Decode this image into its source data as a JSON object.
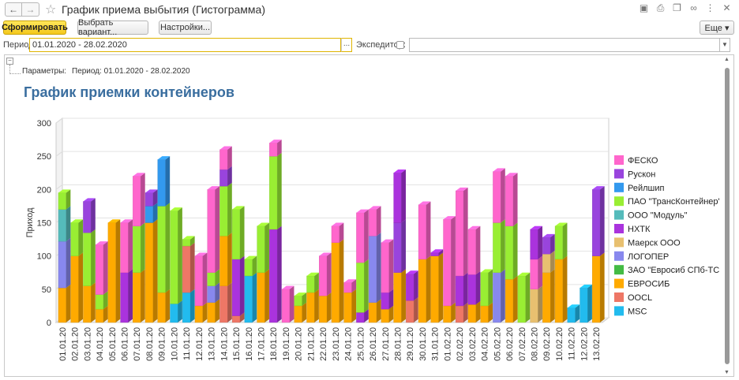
{
  "window": {
    "title": "График приема выбытия (Гистограмма)",
    "nav_back": "←",
    "nav_forward": "→",
    "icons": [
      "save-icon",
      "print-icon",
      "copy-icon",
      "link-icon",
      "menu-icon",
      "close-icon"
    ]
  },
  "toolbar": {
    "generate_label": "Сформировать",
    "variant_label": "Выбрать вариант...",
    "settings_label": "Настройки...",
    "more_label": "Еще ▾"
  },
  "filters": {
    "period_label": "Период:",
    "period_value": "01.01.2020 - 28.02.2020",
    "period_button": "...",
    "expeditor_label": "Экспедитор:",
    "expeditor_checked": false,
    "expeditor_value": ""
  },
  "report": {
    "params_label": "Параметры:",
    "params_value": "Период: 01.01.2020 - 28.02.2020",
    "title": "График приемки контейнеров"
  },
  "colors": {
    "ФЕСКО": "#ff66cc",
    "Рускон": "#9944dd",
    "Рейлшип": "#3399ee",
    "ПАО \"ТрансКонтейнер\"": "#99ee33",
    "ООО \"Модуль\"": "#55bbbb",
    "НХТК": "#aa33dd",
    "Маерск ООО": "#e8c070",
    "ЛОГОПЕР": "#8888ee",
    "ЗАО  \"Евросиб СПб-ТС\"": "#44bb44",
    "ЕВРОСИБ": "#ffaa00",
    "OOCL": "#ee7766",
    "MSC": "#22bbee"
  },
  "chart_data": {
    "type": "bar",
    "stacked": true,
    "ylabel": "Приход",
    "ylim": [
      0,
      300
    ],
    "yticks": [
      0,
      50,
      100,
      150,
      200,
      250,
      300
    ],
    "legend_position": "right",
    "categories": [
      "01.01.20",
      "02.01.20",
      "03.01.20",
      "04.01.20",
      "05.01.20",
      "06.01.20",
      "07.01.20",
      "08.01.20",
      "09.01.20",
      "10.01.20",
      "11.01.20",
      "12.01.20",
      "13.01.20",
      "14.01.20",
      "15.01.20",
      "16.01.20",
      "17.01.20",
      "18.01.20",
      "19.01.20",
      "20.01.20",
      "21.01.20",
      "22.01.20",
      "23.01.20",
      "24.01.20",
      "25.01.20",
      "26.01.20",
      "27.01.20",
      "28.01.20",
      "29.01.20",
      "30.01.20",
      "31.01.20",
      "01.02.20",
      "02.02.20",
      "03.02.20",
      "04.02.20",
      "05.02.20",
      "06.02.20",
      "07.02.20",
      "08.02.20",
      "09.02.20",
      "10.02.20",
      "11.02.20",
      "12.02.20",
      "13.02.20"
    ],
    "series": [
      {
        "name": "MSC",
        "values": [
          0,
          0,
          0,
          0,
          0,
          0,
          0,
          0,
          0,
          28,
          45,
          0,
          0,
          0,
          0,
          70,
          0,
          0,
          0,
          0,
          0,
          0,
          0,
          0,
          0,
          0,
          0,
          0,
          0,
          0,
          0,
          0,
          0,
          0,
          0,
          0,
          0,
          0,
          0,
          0,
          0,
          22,
          52,
          0
        ]
      },
      {
        "name": "OOCL",
        "values": [
          0,
          0,
          0,
          0,
          0,
          0,
          0,
          0,
          0,
          0,
          70,
          0,
          0,
          55,
          10,
          0,
          0,
          0,
          0,
          0,
          0,
          0,
          0,
          0,
          0,
          0,
          0,
          0,
          33,
          0,
          0,
          0,
          25,
          0,
          0,
          0,
          0,
          0,
          0,
          0,
          0,
          0,
          0,
          0
        ]
      },
      {
        "name": "ЕВРОСИБ",
        "values": [
          52,
          100,
          55,
          20,
          150,
          0,
          75,
          150,
          45,
          0,
          0,
          25,
          30,
          75,
          0,
          0,
          75,
          0,
          0,
          25,
          45,
          40,
          120,
          45,
          0,
          30,
          20,
          75,
          0,
          95,
          100,
          25,
          0,
          27,
          25,
          0,
          65,
          0,
          0,
          75,
          95,
          0,
          0,
          100
        ]
      },
      {
        "name": "ЗАО  \"Евросиб СПб-ТС\"",
        "values": [
          0,
          0,
          0,
          0,
          0,
          0,
          0,
          0,
          0,
          0,
          0,
          0,
          0,
          0,
          0,
          0,
          0,
          0,
          0,
          0,
          0,
          0,
          0,
          0,
          0,
          0,
          0,
          0,
          0,
          0,
          0,
          0,
          0,
          0,
          0,
          0,
          0,
          0,
          0,
          0,
          0,
          0,
          0,
          0
        ]
      },
      {
        "name": "ЛОГОПЕР",
        "values": [
          70,
          0,
          0,
          0,
          0,
          0,
          0,
          0,
          0,
          0,
          0,
          0,
          25,
          0,
          0,
          0,
          0,
          0,
          0,
          0,
          0,
          0,
          0,
          0,
          0,
          100,
          0,
          0,
          0,
          0,
          0,
          0,
          0,
          0,
          0,
          75,
          0,
          0,
          0,
          0,
          0,
          0,
          0,
          0
        ]
      },
      {
        "name": "Маерск ООО",
        "values": [
          0,
          0,
          0,
          0,
          0,
          0,
          0,
          0,
          0,
          0,
          0,
          0,
          0,
          0,
          0,
          0,
          0,
          0,
          0,
          0,
          0,
          0,
          0,
          0,
          0,
          0,
          0,
          0,
          0,
          0,
          0,
          0,
          0,
          0,
          0,
          0,
          0,
          0,
          50,
          28,
          0,
          0,
          0,
          0
        ]
      },
      {
        "name": "НХТК",
        "values": [
          0,
          0,
          0,
          0,
          0,
          75,
          0,
          0,
          0,
          0,
          0,
          0,
          0,
          0,
          85,
          0,
          0,
          140,
          0,
          0,
          0,
          0,
          0,
          0,
          15,
          0,
          25,
          0,
          0,
          0,
          0,
          0,
          45,
          45,
          0,
          0,
          0,
          0,
          0,
          0,
          0,
          0,
          0,
          0
        ]
      },
      {
        "name": "ООО \"Модуль\"",
        "values": [
          48,
          0,
          0,
          0,
          0,
          0,
          0,
          0,
          0,
          0,
          0,
          0,
          0,
          0,
          0,
          0,
          0,
          0,
          0,
          0,
          0,
          0,
          0,
          0,
          0,
          0,
          0,
          0,
          0,
          0,
          0,
          0,
          0,
          0,
          0,
          0,
          0,
          0,
          0,
          0,
          0,
          0,
          0,
          0
        ]
      },
      {
        "name": "ПАО \"ТрансКонтейнер\"",
        "values": [
          25,
          50,
          80,
          22,
          0,
          0,
          70,
          0,
          130,
          140,
          10,
          0,
          20,
          75,
          75,
          25,
          70,
          110,
          0,
          15,
          25,
          0,
          0,
          0,
          75,
          0,
          0,
          0,
          0,
          0,
          0,
          0,
          0,
          0,
          50,
          75,
          80,
          70,
          0,
          0,
          50,
          0,
          0,
          0
        ]
      },
      {
        "name": "Рейлшип",
        "values": [
          0,
          0,
          0,
          0,
          0,
          0,
          0,
          25,
          70,
          0,
          0,
          0,
          0,
          0,
          0,
          0,
          0,
          0,
          0,
          0,
          0,
          0,
          0,
          0,
          0,
          0,
          0,
          0,
          0,
          0,
          0,
          0,
          0,
          0,
          0,
          0,
          0,
          0,
          0,
          0,
          0,
          0,
          0,
          0
        ]
      },
      {
        "name": "Рускон",
        "values": [
          0,
          0,
          47,
          0,
          0,
          0,
          0,
          20,
          0,
          0,
          0,
          0,
          0,
          25,
          0,
          0,
          0,
          0,
          0,
          0,
          0,
          0,
          0,
          0,
          0,
          0,
          0,
          75,
          0,
          0,
          0,
          0,
          0,
          0,
          0,
          0,
          0,
          0,
          0,
          25,
          0,
          0,
          0,
          100
        ]
      },
      {
        "name": "ФЕСКО",
        "values": [
          0,
          0,
          0,
          75,
          0,
          75,
          75,
          0,
          0,
          0,
          0,
          75,
          125,
          30,
          0,
          0,
          0,
          20,
          0,
          0,
          0,
          60,
          25,
          15,
          75,
          40,
          75,
          0,
          0,
          82,
          0,
          130,
          128,
          68,
          0,
          77,
          75,
          0,
          45,
          0,
          0,
          0,
          0,
          0
        ]
      },
      {
        "name": "НХТК ",
        "values": [
          0,
          0,
          0,
          0,
          0,
          0,
          0,
          0,
          0,
          0,
          0,
          0,
          0,
          0,
          0,
          0,
          0,
          0,
          0,
          0,
          0,
          0,
          0,
          0,
          0,
          0,
          0,
          75,
          40,
          0,
          5,
          0,
          0,
          0,
          0,
          0,
          0,
          0,
          45,
          0,
          0,
          0,
          0,
          0
        ]
      },
      {
        "name": "ЛОГОПЕР ",
        "values": [
          0,
          0,
          0,
          0,
          0,
          0,
          0,
          0,
          0,
          0,
          0,
          0,
          0,
          0,
          0,
          0,
          0,
          0,
          0,
          0,
          0,
          0,
          0,
          0,
          0,
          0,
          0,
          0,
          0,
          0,
          0,
          0,
          0,
          0,
          0,
          0,
          0,
          0,
          0,
          0,
          0,
          0,
          0,
          0
        ]
      },
      {
        "name": "ФЕСКО ",
        "values": [
          0,
          0,
          0,
          0,
          0,
          0,
          0,
          0,
          0,
          0,
          0,
          0,
          0,
          0,
          0,
          0,
          0,
          0,
          50,
          0,
          0,
          0,
          0,
          0,
          0,
          0,
          0,
          0,
          0,
          0,
          0,
          0,
          0,
          0,
          0,
          0,
          0,
          0,
          0,
          0,
          0,
          0,
          0,
          0
        ]
      }
    ],
    "legend": [
      "ФЕСКО",
      "Рускон",
      "Рейлшип",
      "ПАО \"ТрансКонтейнер\"",
      "ООО \"Модуль\"",
      "НХТК",
      "Маерск ООО",
      "ЛОГОПЕР",
      "ЗАО  \"Евросиб СПб-ТС\"",
      "ЕВРОСИБ",
      "OOCL",
      "MSC"
    ]
  }
}
